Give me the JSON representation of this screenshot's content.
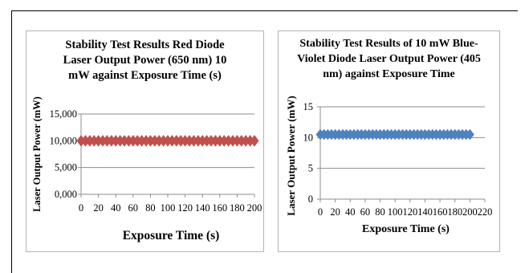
{
  "chart_data": [
    {
      "type": "scatter",
      "title": "Stability Test Results Red Diode\nLaser Output Power (650 nm) 10\nmW against Exposure Time (s)",
      "xlabel": "Exposure Time (s)",
      "ylabel": "Laser Output Power (mW)",
      "xlim": [
        0,
        200
      ],
      "ylim": [
        0,
        15
      ],
      "xticks": [
        0,
        20,
        40,
        60,
        80,
        100,
        120,
        140,
        160,
        180,
        200
      ],
      "yticks": [
        0,
        5,
        10,
        15
      ],
      "ytick_labels": [
        "0,000",
        "5,000",
        "10,000",
        "15,000"
      ],
      "grid": "horizontal",
      "marker": "diamond",
      "series": [
        {
          "color": "#c0504d",
          "x": [
            0,
            5,
            10,
            15,
            20,
            25,
            30,
            35,
            40,
            45,
            50,
            55,
            60,
            65,
            70,
            75,
            80,
            85,
            90,
            95,
            100,
            105,
            110,
            115,
            120,
            125,
            130,
            135,
            140,
            145,
            150,
            155,
            160,
            165,
            170,
            175,
            180,
            185,
            190,
            195,
            200
          ],
          "y": [
            10,
            10,
            10,
            10,
            10,
            10,
            10,
            10,
            10,
            10,
            10,
            10,
            10,
            10,
            10,
            10,
            10,
            10,
            10,
            10,
            10,
            10,
            10,
            10,
            10,
            10,
            10,
            10,
            10,
            10,
            10,
            10,
            10,
            10,
            10,
            10,
            10,
            10,
            10,
            10,
            10
          ]
        }
      ]
    },
    {
      "type": "scatter",
      "title": "Stability Test Results of 10 mW Blue-\nViolet Diode Laser Output Power (405\nnm) against Exposure Time",
      "xlabel": "Exposure Time (s)",
      "ylabel": "Laser Output Power (mW)",
      "xlim": [
        0,
        220
      ],
      "ylim": [
        0,
        15
      ],
      "xticks": [
        0,
        20,
        40,
        60,
        80,
        100,
        120,
        140,
        160,
        180,
        200,
        220
      ],
      "yticks": [
        0,
        5,
        10,
        15
      ],
      "ytick_labels": [
        "0",
        "5",
        "10",
        "15"
      ],
      "grid": "horizontal",
      "marker": "diamond",
      "series": [
        {
          "color": "#4f81bd",
          "x": [
            0,
            5,
            10,
            15,
            20,
            25,
            30,
            35,
            40,
            45,
            50,
            55,
            60,
            65,
            70,
            75,
            80,
            85,
            90,
            95,
            100,
            105,
            110,
            115,
            120,
            125,
            130,
            135,
            140,
            145,
            150,
            155,
            160,
            165,
            170,
            175,
            180,
            185,
            190,
            195,
            200
          ],
          "y": [
            10.5,
            10.5,
            10.5,
            10.5,
            10.5,
            10.5,
            10.5,
            10.5,
            10.5,
            10.5,
            10.5,
            10.5,
            10.5,
            10.5,
            10.5,
            10.5,
            10.5,
            10.5,
            10.5,
            10.5,
            10.5,
            10.5,
            10.5,
            10.5,
            10.5,
            10.5,
            10.5,
            10.5,
            10.5,
            10.5,
            10.5,
            10.5,
            10.5,
            10.5,
            10.5,
            10.5,
            10.5,
            10.5,
            10.5,
            10.5,
            10.5
          ]
        }
      ]
    }
  ]
}
